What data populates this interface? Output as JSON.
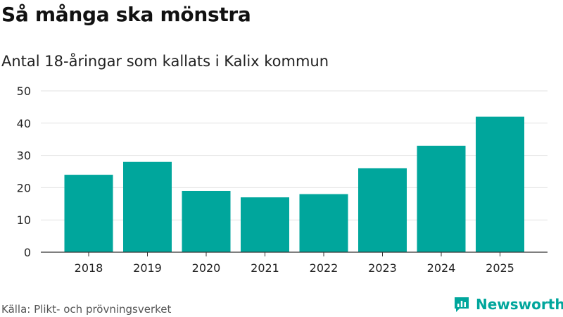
{
  "title": "Så många ska mönstra",
  "subtitle": "Antal 18-åringar som kallats i Kalix kommun",
  "source": "Källa: Plikt- och prövningsverket",
  "brand": {
    "name": "Newsworthy",
    "color": "#00a69c"
  },
  "chart_data": {
    "type": "bar",
    "categories": [
      "2018",
      "2019",
      "2020",
      "2021",
      "2022",
      "2023",
      "2024",
      "2025"
    ],
    "values": [
      24,
      28,
      19,
      17,
      18,
      26,
      33,
      42
    ],
    "ylim": [
      0,
      50
    ],
    "yticks": [
      0,
      10,
      20,
      30,
      40,
      50
    ],
    "grid": true,
    "bar_color": "#00a69c",
    "xlabel": "",
    "ylabel": ""
  }
}
